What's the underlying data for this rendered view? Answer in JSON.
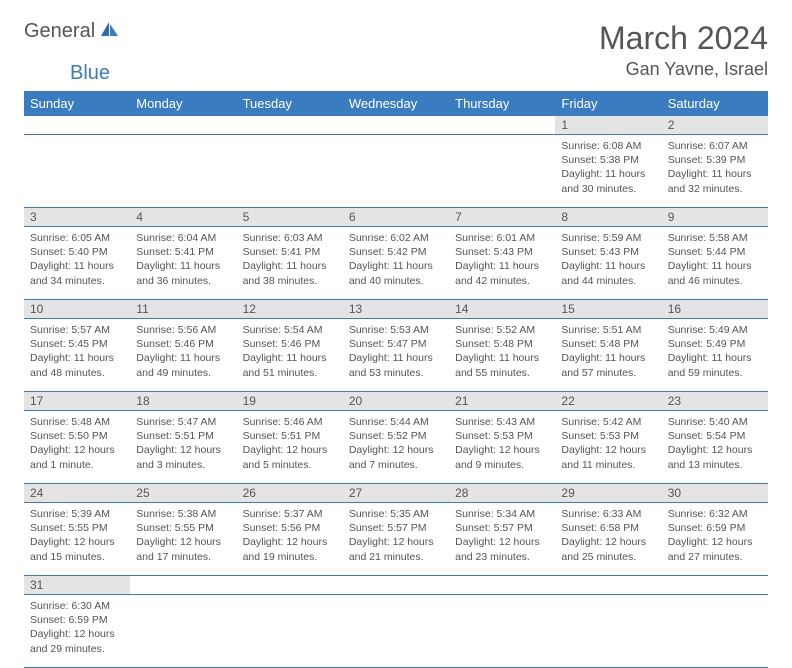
{
  "logo": {
    "text1": "General",
    "text2": "Blue"
  },
  "title": "March 2024",
  "location": "Gan Yavne, Israel",
  "colors": {
    "header_bg": "#3a7cc0",
    "header_text": "#ffffff",
    "daynum_bg": "#e4e4e4",
    "cell_border": "#3a7cc0",
    "text": "#555555",
    "background": "#ffffff"
  },
  "day_headers": [
    "Sunday",
    "Monday",
    "Tuesday",
    "Wednesday",
    "Thursday",
    "Friday",
    "Saturday"
  ],
  "weeks": [
    [
      null,
      null,
      null,
      null,
      null,
      {
        "d": "1",
        "sr": "Sunrise: 6:08 AM",
        "ss": "Sunset: 5:38 PM",
        "dl1": "Daylight: 11 hours",
        "dl2": "and 30 minutes."
      },
      {
        "d": "2",
        "sr": "Sunrise: 6:07 AM",
        "ss": "Sunset: 5:39 PM",
        "dl1": "Daylight: 11 hours",
        "dl2": "and 32 minutes."
      }
    ],
    [
      {
        "d": "3",
        "sr": "Sunrise: 6:05 AM",
        "ss": "Sunset: 5:40 PM",
        "dl1": "Daylight: 11 hours",
        "dl2": "and 34 minutes."
      },
      {
        "d": "4",
        "sr": "Sunrise: 6:04 AM",
        "ss": "Sunset: 5:41 PM",
        "dl1": "Daylight: 11 hours",
        "dl2": "and 36 minutes."
      },
      {
        "d": "5",
        "sr": "Sunrise: 6:03 AM",
        "ss": "Sunset: 5:41 PM",
        "dl1": "Daylight: 11 hours",
        "dl2": "and 38 minutes."
      },
      {
        "d": "6",
        "sr": "Sunrise: 6:02 AM",
        "ss": "Sunset: 5:42 PM",
        "dl1": "Daylight: 11 hours",
        "dl2": "and 40 minutes."
      },
      {
        "d": "7",
        "sr": "Sunrise: 6:01 AM",
        "ss": "Sunset: 5:43 PM",
        "dl1": "Daylight: 11 hours",
        "dl2": "and 42 minutes."
      },
      {
        "d": "8",
        "sr": "Sunrise: 5:59 AM",
        "ss": "Sunset: 5:43 PM",
        "dl1": "Daylight: 11 hours",
        "dl2": "and 44 minutes."
      },
      {
        "d": "9",
        "sr": "Sunrise: 5:58 AM",
        "ss": "Sunset: 5:44 PM",
        "dl1": "Daylight: 11 hours",
        "dl2": "and 46 minutes."
      }
    ],
    [
      {
        "d": "10",
        "sr": "Sunrise: 5:57 AM",
        "ss": "Sunset: 5:45 PM",
        "dl1": "Daylight: 11 hours",
        "dl2": "and 48 minutes."
      },
      {
        "d": "11",
        "sr": "Sunrise: 5:56 AM",
        "ss": "Sunset: 5:46 PM",
        "dl1": "Daylight: 11 hours",
        "dl2": "and 49 minutes."
      },
      {
        "d": "12",
        "sr": "Sunrise: 5:54 AM",
        "ss": "Sunset: 5:46 PM",
        "dl1": "Daylight: 11 hours",
        "dl2": "and 51 minutes."
      },
      {
        "d": "13",
        "sr": "Sunrise: 5:53 AM",
        "ss": "Sunset: 5:47 PM",
        "dl1": "Daylight: 11 hours",
        "dl2": "and 53 minutes."
      },
      {
        "d": "14",
        "sr": "Sunrise: 5:52 AM",
        "ss": "Sunset: 5:48 PM",
        "dl1": "Daylight: 11 hours",
        "dl2": "and 55 minutes."
      },
      {
        "d": "15",
        "sr": "Sunrise: 5:51 AM",
        "ss": "Sunset: 5:48 PM",
        "dl1": "Daylight: 11 hours",
        "dl2": "and 57 minutes."
      },
      {
        "d": "16",
        "sr": "Sunrise: 5:49 AM",
        "ss": "Sunset: 5:49 PM",
        "dl1": "Daylight: 11 hours",
        "dl2": "and 59 minutes."
      }
    ],
    [
      {
        "d": "17",
        "sr": "Sunrise: 5:48 AM",
        "ss": "Sunset: 5:50 PM",
        "dl1": "Daylight: 12 hours",
        "dl2": "and 1 minute."
      },
      {
        "d": "18",
        "sr": "Sunrise: 5:47 AM",
        "ss": "Sunset: 5:51 PM",
        "dl1": "Daylight: 12 hours",
        "dl2": "and 3 minutes."
      },
      {
        "d": "19",
        "sr": "Sunrise: 5:46 AM",
        "ss": "Sunset: 5:51 PM",
        "dl1": "Daylight: 12 hours",
        "dl2": "and 5 minutes."
      },
      {
        "d": "20",
        "sr": "Sunrise: 5:44 AM",
        "ss": "Sunset: 5:52 PM",
        "dl1": "Daylight: 12 hours",
        "dl2": "and 7 minutes."
      },
      {
        "d": "21",
        "sr": "Sunrise: 5:43 AM",
        "ss": "Sunset: 5:53 PM",
        "dl1": "Daylight: 12 hours",
        "dl2": "and 9 minutes."
      },
      {
        "d": "22",
        "sr": "Sunrise: 5:42 AM",
        "ss": "Sunset: 5:53 PM",
        "dl1": "Daylight: 12 hours",
        "dl2": "and 11 minutes."
      },
      {
        "d": "23",
        "sr": "Sunrise: 5:40 AM",
        "ss": "Sunset: 5:54 PM",
        "dl1": "Daylight: 12 hours",
        "dl2": "and 13 minutes."
      }
    ],
    [
      {
        "d": "24",
        "sr": "Sunrise: 5:39 AM",
        "ss": "Sunset: 5:55 PM",
        "dl1": "Daylight: 12 hours",
        "dl2": "and 15 minutes."
      },
      {
        "d": "25",
        "sr": "Sunrise: 5:38 AM",
        "ss": "Sunset: 5:55 PM",
        "dl1": "Daylight: 12 hours",
        "dl2": "and 17 minutes."
      },
      {
        "d": "26",
        "sr": "Sunrise: 5:37 AM",
        "ss": "Sunset: 5:56 PM",
        "dl1": "Daylight: 12 hours",
        "dl2": "and 19 minutes."
      },
      {
        "d": "27",
        "sr": "Sunrise: 5:35 AM",
        "ss": "Sunset: 5:57 PM",
        "dl1": "Daylight: 12 hours",
        "dl2": "and 21 minutes."
      },
      {
        "d": "28",
        "sr": "Sunrise: 5:34 AM",
        "ss": "Sunset: 5:57 PM",
        "dl1": "Daylight: 12 hours",
        "dl2": "and 23 minutes."
      },
      {
        "d": "29",
        "sr": "Sunrise: 6:33 AM",
        "ss": "Sunset: 6:58 PM",
        "dl1": "Daylight: 12 hours",
        "dl2": "and 25 minutes."
      },
      {
        "d": "30",
        "sr": "Sunrise: 6:32 AM",
        "ss": "Sunset: 6:59 PM",
        "dl1": "Daylight: 12 hours",
        "dl2": "and 27 minutes."
      }
    ],
    [
      {
        "d": "31",
        "sr": "Sunrise: 6:30 AM",
        "ss": "Sunset: 6:59 PM",
        "dl1": "Daylight: 12 hours",
        "dl2": "and 29 minutes."
      },
      null,
      null,
      null,
      null,
      null,
      null
    ]
  ]
}
